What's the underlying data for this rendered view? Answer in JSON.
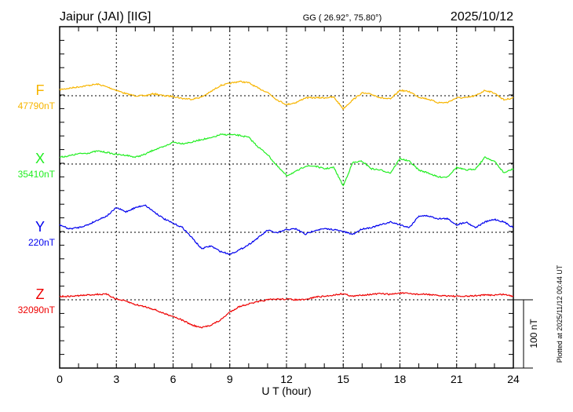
{
  "header": {
    "station": "Jaipur (JAI)  [IIG]",
    "coords": "GG ( 26.92°,  75.80°)",
    "date": "2025/10/12"
  },
  "footer": {
    "plotted_at": "Plotted at 2025/11/12 00:44 UT",
    "scale_label": "100 nT"
  },
  "colors": {
    "F": "#f7b500",
    "X": "#22ee22",
    "Y": "#0000ee",
    "Z": "#ee0000"
  },
  "chart_data": {
    "type": "line",
    "title": "Jaipur (JAI)  [IIG]",
    "xlabel": "U T (hour)",
    "xlim": [
      0,
      24
    ],
    "xticks": [
      "0",
      "3",
      "6",
      "9",
      "12",
      "15",
      "18",
      "21",
      "24"
    ],
    "scale_nT": 100,
    "minor_tick_nT": 20,
    "x": [
      0,
      0.5,
      1,
      1.5,
      2,
      2.5,
      3,
      3.5,
      4,
      4.5,
      5,
      5.5,
      6,
      6.5,
      7,
      7.5,
      8,
      8.5,
      9,
      9.5,
      10,
      10.5,
      11,
      11.5,
      12,
      12.5,
      13,
      13.5,
      14,
      14.5,
      15,
      15.5,
      16,
      16.5,
      17,
      17.5,
      18,
      18.5,
      19,
      19.5,
      20,
      20.5,
      21,
      21.5,
      22,
      22.5,
      23,
      23.5,
      24
    ],
    "series": [
      {
        "name": "F",
        "baseline": "47790nT",
        "values": [
          9,
          11,
          13,
          15,
          17,
          13,
          8,
          3,
          0,
          0,
          3,
          0,
          -1,
          -4,
          -5,
          -2,
          6,
          15,
          18,
          21,
          19,
          11,
          5,
          -6,
          -13,
          -10,
          -3,
          -3,
          -3,
          -2,
          -19,
          -6,
          4,
          2,
          -3,
          -5,
          8,
          6,
          -2,
          -5,
          -10,
          -10,
          -3,
          -3,
          0,
          8,
          4,
          -6,
          -3
        ]
      },
      {
        "name": "X",
        "baseline": "35410nT",
        "values": [
          10,
          12,
          15,
          16,
          19,
          17,
          14,
          13,
          10,
          14,
          21,
          25,
          32,
          30,
          32,
          36,
          38,
          43,
          43,
          42,
          39,
          25,
          14,
          -3,
          -17,
          -11,
          -3,
          -3,
          -7,
          -5,
          -32,
          2,
          4,
          -7,
          -9,
          -13,
          8,
          4,
          -9,
          -13,
          -19,
          -19,
          -5,
          -9,
          -7,
          10,
          4,
          -13,
          -7
        ]
      },
      {
        "name": "Y",
        "baseline": "220nT",
        "values": [
          11,
          5,
          7,
          11,
          18,
          24,
          36,
          30,
          36,
          40,
          30,
          20,
          13,
          7,
          -8,
          -24,
          -20,
          -28,
          -32,
          -26,
          -18,
          -8,
          3,
          -1,
          4,
          5,
          -3,
          3,
          5,
          4,
          1,
          -3,
          5,
          7,
          11,
          15,
          11,
          7,
          24,
          24,
          20,
          20,
          11,
          15,
          7,
          15,
          19,
          15,
          7
        ]
      },
      {
        "name": "Z",
        "baseline": "32090nT",
        "values": [
          5,
          5,
          6,
          7,
          8,
          8,
          1,
          -2,
          -7,
          -10,
          -14,
          -20,
          -24,
          -30,
          -37,
          -41,
          -37,
          -30,
          -18,
          -10,
          -6,
          -3,
          0,
          1,
          1,
          0,
          0,
          4,
          5,
          7,
          9,
          5,
          7,
          8,
          9,
          8,
          10,
          9,
          8,
          8,
          6,
          6,
          5,
          5,
          6,
          7,
          7,
          8,
          5
        ]
      }
    ]
  }
}
